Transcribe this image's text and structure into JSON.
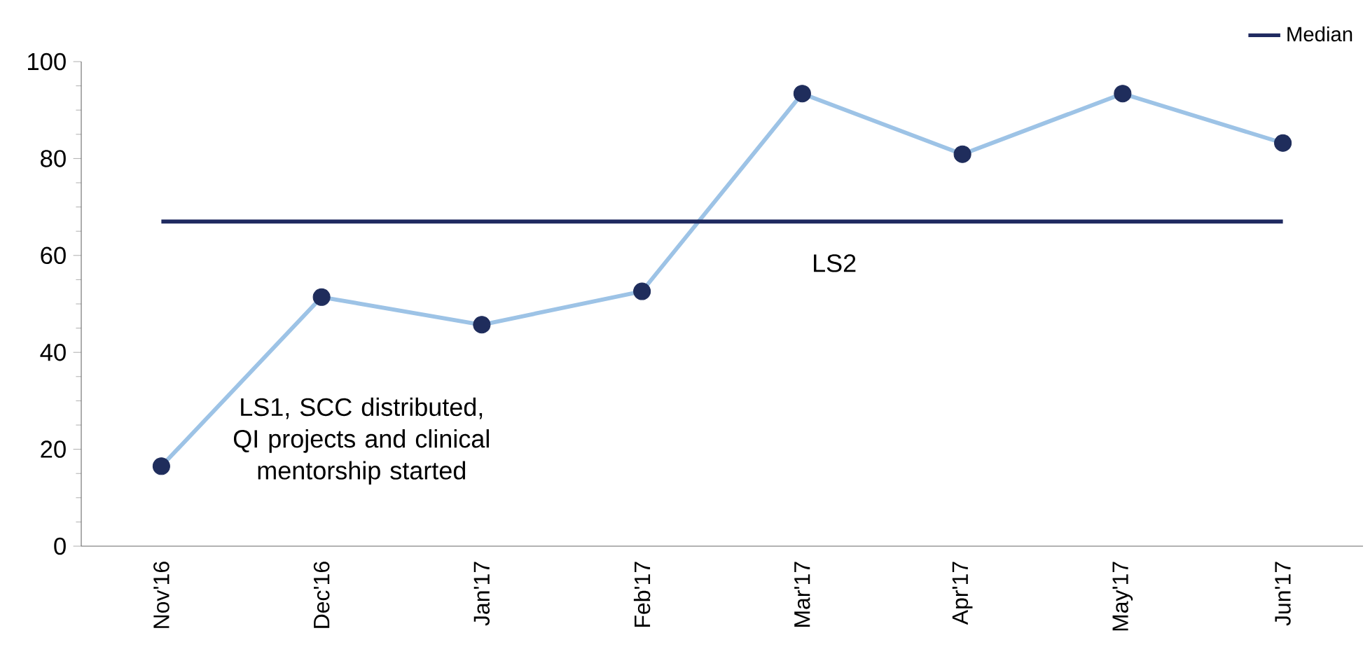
{
  "chart_data": {
    "type": "line",
    "categories": [
      "Nov'16",
      "Dec'16",
      "Jan'17",
      "Feb'17",
      "Mar'17",
      "Apr'17",
      "May'17",
      "Jun'17"
    ],
    "series": [
      {
        "color": "#9dc3e6",
        "colors": [
          "#1f2d5c",
          "#1f2d5c",
          "#1f2d5c",
          "#1f2d5c",
          "#1f2d5c",
          "#1f2d5c",
          "#1f2d5c",
          "#1f2d5c"
        ],
        "marker": "circle",
        "values": [
          16.5,
          51.4,
          45.7,
          52.6,
          93.4,
          80.9,
          93.4,
          83.2
        ]
      },
      {
        "name": "Median",
        "color": "#1f2a60",
        "marker": "none",
        "values": [
          67,
          67,
          67,
          67,
          67,
          67,
          67,
          67
        ]
      }
    ],
    "ylim": [
      0,
      100
    ],
    "yticks": [
      0,
      20,
      40,
      60,
      80,
      100
    ],
    "grid": false,
    "legend": "top right",
    "annotations": [
      "LS1, SCC distributed, QI projects and clinical mentorship started",
      "LS2"
    ]
  }
}
